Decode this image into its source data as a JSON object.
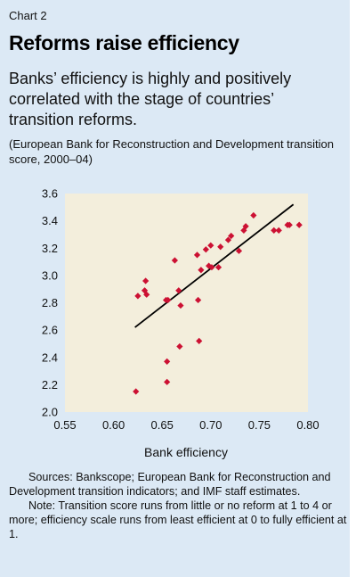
{
  "header": {
    "chart_label": "Chart 2",
    "title": "Reforms raise efficiency",
    "subtitle": "Banks’ efficiency is highly and positively correlated with the stage of countries’ transition reforms.",
    "unit_note": "(European Bank for Reconstruction and Development transition score, 2000–04)"
  },
  "footer": {
    "sources": "Sources: Bankscope; European Bank for Reconstruction and Development transition indicators; and IMF staff estimates.",
    "note": "Note: Transition score runs from little or no reform at 1 to 4 or more; efficiency scale runs from least efficient at 0 to fully efficient at 1."
  },
  "colors": {
    "panel_background": "#dce9f5",
    "plot_background": "#f3eedc",
    "marker": "#cc1133",
    "trend_line": "#000000"
  },
  "chart_data": {
    "type": "scatter",
    "xlabel": "Bank efficiency",
    "ylabel": "",
    "xlim": [
      0.55,
      0.8
    ],
    "ylim": [
      2.0,
      3.6
    ],
    "xticks": [
      "0.55",
      "0.60",
      "0.65",
      "0.70",
      "0.75",
      "0.80"
    ],
    "yticks": [
      "2.0",
      "2.2",
      "2.4",
      "2.6",
      "2.8",
      "3.0",
      "3.2",
      "3.4",
      "3.6"
    ],
    "grid": false,
    "legend": "none",
    "marker_shape": "diamond",
    "series": [
      {
        "points": [
          {
            "x": 0.623,
            "y": 2.15
          },
          {
            "x": 0.625,
            "y": 2.85
          },
          {
            "x": 0.632,
            "y": 2.89
          },
          {
            "x": 0.633,
            "y": 2.96
          },
          {
            "x": 0.634,
            "y": 2.86
          },
          {
            "x": 0.654,
            "y": 2.82
          },
          {
            "x": 0.655,
            "y": 2.37
          },
          {
            "x": 0.655,
            "y": 2.22
          },
          {
            "x": 0.656,
            "y": 2.82
          },
          {
            "x": 0.663,
            "y": 3.11
          },
          {
            "x": 0.667,
            "y": 2.89
          },
          {
            "x": 0.668,
            "y": 2.48
          },
          {
            "x": 0.669,
            "y": 2.78
          },
          {
            "x": 0.686,
            "y": 3.15
          },
          {
            "x": 0.687,
            "y": 2.82
          },
          {
            "x": 0.688,
            "y": 2.52
          },
          {
            "x": 0.69,
            "y": 3.04
          },
          {
            "x": 0.695,
            "y": 3.19
          },
          {
            "x": 0.698,
            "y": 3.07
          },
          {
            "x": 0.7,
            "y": 3.22
          },
          {
            "x": 0.701,
            "y": 3.06
          },
          {
            "x": 0.708,
            "y": 3.06
          },
          {
            "x": 0.71,
            "y": 3.21
          },
          {
            "x": 0.718,
            "y": 3.26
          },
          {
            "x": 0.721,
            "y": 3.29
          },
          {
            "x": 0.729,
            "y": 3.18
          },
          {
            "x": 0.734,
            "y": 3.33
          },
          {
            "x": 0.736,
            "y": 3.36
          },
          {
            "x": 0.744,
            "y": 3.44
          },
          {
            "x": 0.765,
            "y": 3.33
          },
          {
            "x": 0.77,
            "y": 3.33
          },
          {
            "x": 0.779,
            "y": 3.37
          },
          {
            "x": 0.781,
            "y": 3.37
          },
          {
            "x": 0.791,
            "y": 3.37
          }
        ]
      }
    ],
    "trendline": {
      "x": [
        0.622,
        0.785
      ],
      "y": [
        2.62,
        3.52
      ]
    }
  }
}
